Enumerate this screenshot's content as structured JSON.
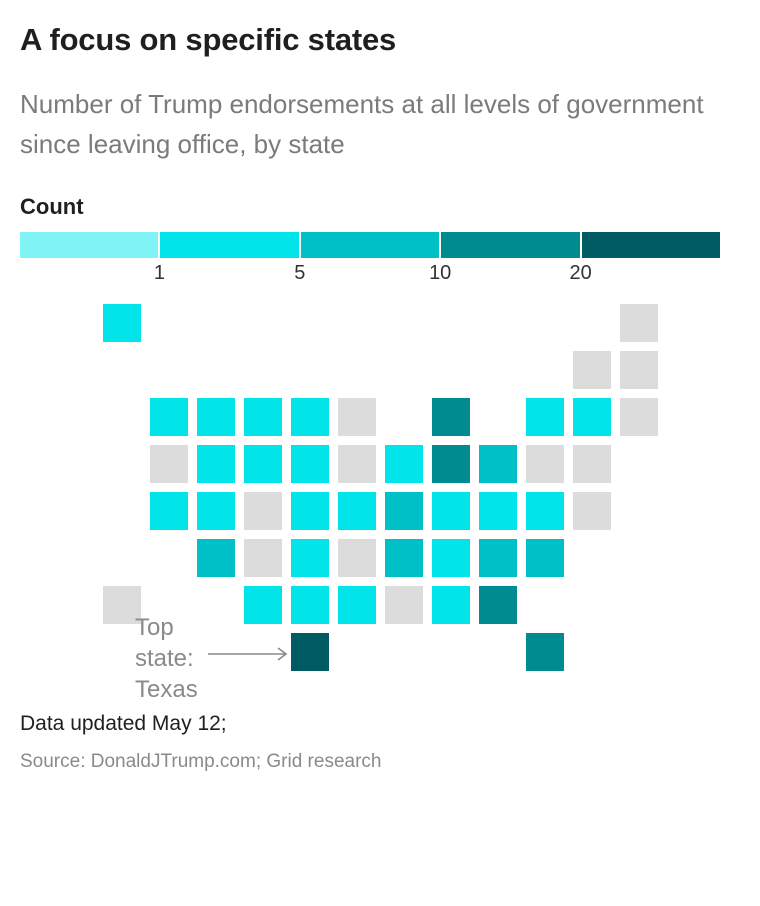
{
  "title": "A focus on specific states",
  "subtitle": "Number of Trump endorsements at all levels of government since leaving office, by state",
  "legend": {
    "title": "Count",
    "ticks": [
      "1",
      "5",
      "10",
      "20"
    ],
    "colors": [
      "#7ff3f5",
      "#00e4ea",
      "#00c0c7",
      "#008b90",
      "#005c62"
    ]
  },
  "no_data_color": "#dcdcdc",
  "annotation": {
    "line1": "Top",
    "line2": "state:",
    "line3": "Texas"
  },
  "note": "Data updated May 12;",
  "source": "Source: DonaldJTrump.com; Grid research",
  "chart_data": {
    "type": "heatmap",
    "title": "A focus on specific states",
    "subtitle": "Number of Trump endorsements at all levels of government since leaving office, by state",
    "legend_title": "Count",
    "bins": [
      {
        "label": "<1",
        "color": "#7ff3f5"
      },
      {
        "label": "1-5",
        "color": "#00e4ea"
      },
      {
        "label": "5-10",
        "color": "#00c0c7"
      },
      {
        "label": "10-20",
        "color": "#008b90"
      },
      {
        "label": "20+",
        "color": "#005c62"
      }
    ],
    "bin_edges": [
      1,
      5,
      10,
      20
    ],
    "no_data_color": "#dcdcdc",
    "tiles": [
      {
        "col": 2,
        "row": 0,
        "bin": 1
      },
      {
        "col": 13,
        "row": 0,
        "bin": null
      },
      {
        "col": 12,
        "row": 1,
        "bin": null
      },
      {
        "col": 13,
        "row": 1,
        "bin": null
      },
      {
        "col": 3,
        "row": 2,
        "bin": 1
      },
      {
        "col": 4,
        "row": 2,
        "bin": 1
      },
      {
        "col": 5,
        "row": 2,
        "bin": 1
      },
      {
        "col": 6,
        "row": 2,
        "bin": 1
      },
      {
        "col": 7,
        "row": 2,
        "bin": null
      },
      {
        "col": 9,
        "row": 2,
        "bin": 3
      },
      {
        "col": 11,
        "row": 2,
        "bin": 1
      },
      {
        "col": 12,
        "row": 2,
        "bin": 1
      },
      {
        "col": 13,
        "row": 2,
        "bin": null
      },
      {
        "col": 3,
        "row": 3,
        "bin": null
      },
      {
        "col": 4,
        "row": 3,
        "bin": 1
      },
      {
        "col": 5,
        "row": 3,
        "bin": 1
      },
      {
        "col": 6,
        "row": 3,
        "bin": 1
      },
      {
        "col": 7,
        "row": 3,
        "bin": null
      },
      {
        "col": 8,
        "row": 3,
        "bin": 1
      },
      {
        "col": 9,
        "row": 3,
        "bin": 3
      },
      {
        "col": 10,
        "row": 3,
        "bin": 2
      },
      {
        "col": 11,
        "row": 3,
        "bin": null
      },
      {
        "col": 12,
        "row": 3,
        "bin": null
      },
      {
        "col": 3,
        "row": 4,
        "bin": 1
      },
      {
        "col": 4,
        "row": 4,
        "bin": 1
      },
      {
        "col": 5,
        "row": 4,
        "bin": null
      },
      {
        "col": 6,
        "row": 4,
        "bin": 1
      },
      {
        "col": 7,
        "row": 4,
        "bin": 1
      },
      {
        "col": 8,
        "row": 4,
        "bin": 2
      },
      {
        "col": 9,
        "row": 4,
        "bin": 1
      },
      {
        "col": 10,
        "row": 4,
        "bin": 1
      },
      {
        "col": 11,
        "row": 4,
        "bin": 1
      },
      {
        "col": 12,
        "row": 4,
        "bin": null
      },
      {
        "col": 4,
        "row": 5,
        "bin": 2
      },
      {
        "col": 5,
        "row": 5,
        "bin": null
      },
      {
        "col": 6,
        "row": 5,
        "bin": 1
      },
      {
        "col": 7,
        "row": 5,
        "bin": null
      },
      {
        "col": 8,
        "row": 5,
        "bin": 2
      },
      {
        "col": 9,
        "row": 5,
        "bin": 1
      },
      {
        "col": 10,
        "row": 5,
        "bin": 2
      },
      {
        "col": 11,
        "row": 5,
        "bin": 2
      },
      {
        "col": 2,
        "row": 6,
        "bin": null
      },
      {
        "col": 5,
        "row": 6,
        "bin": 1
      },
      {
        "col": 6,
        "row": 6,
        "bin": 1
      },
      {
        "col": 7,
        "row": 6,
        "bin": 1
      },
      {
        "col": 8,
        "row": 6,
        "bin": null
      },
      {
        "col": 9,
        "row": 6,
        "bin": 1
      },
      {
        "col": 10,
        "row": 6,
        "bin": 3
      },
      {
        "col": 6,
        "row": 7,
        "bin": 4
      },
      {
        "col": 11,
        "row": 7,
        "bin": 3
      }
    ],
    "top_state": "Texas"
  }
}
